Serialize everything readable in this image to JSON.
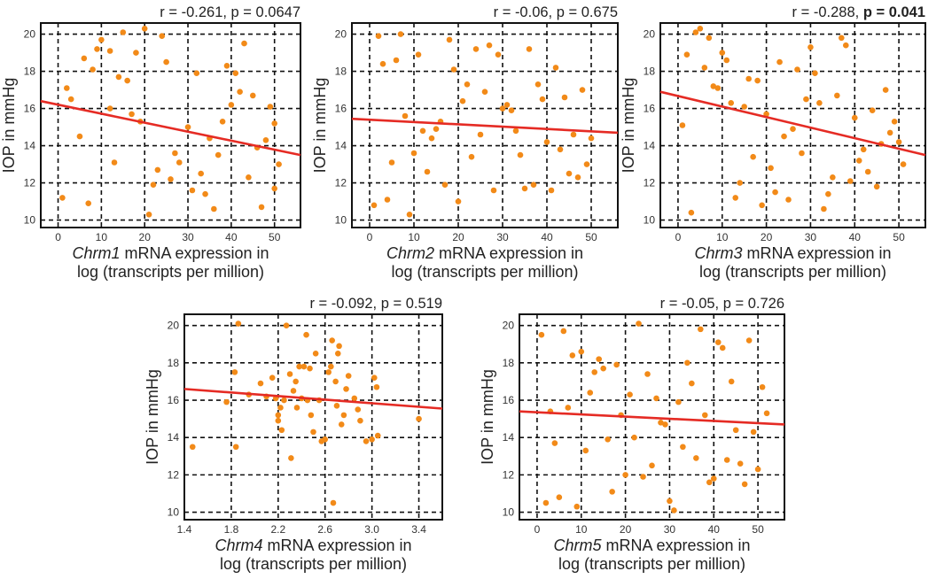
{
  "figure": {
    "colors": {
      "point": "#f28a18",
      "fit_line": "#e52b24",
      "grid": "#111111",
      "frame": "#111111"
    }
  },
  "chart_data": [
    {
      "type": "scatter",
      "panel": "chrm1",
      "stat_label": "r = -0.261, p = 0.0647",
      "stat_r": "r = -0.261, ",
      "stat_p": "p = 0.0647",
      "stat_p_bold": false,
      "ylabel": "IOP in mmHg",
      "xlabel_gene": "Chrm1",
      "xlabel_rest": " mRNA expression in",
      "xlabel_line2": "log (transcripts per million)",
      "xlim": [
        -4,
        56
      ],
      "ylim": [
        9.6,
        20.6
      ],
      "xticks": [
        0,
        10,
        20,
        30,
        40,
        50
      ],
      "xtick_labels": [
        "0",
        "10",
        "20",
        "30",
        "40",
        "50"
      ],
      "yticks": [
        10,
        12,
        14,
        16,
        18,
        20
      ],
      "ytick_labels": [
        "10",
        "12",
        "14",
        "16",
        "18",
        "20"
      ],
      "fit": {
        "x": [
          -4,
          56
        ],
        "y": [
          16.4,
          13.5
        ]
      },
      "points": [
        [
          1,
          11.2
        ],
        [
          2,
          17.1
        ],
        [
          3,
          16.5
        ],
        [
          5,
          14.5
        ],
        [
          6,
          18.7
        ],
        [
          7,
          10.9
        ],
        [
          8,
          18.1
        ],
        [
          9,
          19.2
        ],
        [
          10,
          19.7
        ],
        [
          12,
          16.0
        ],
        [
          12,
          19.1
        ],
        [
          13,
          13.1
        ],
        [
          14,
          17.7
        ],
        [
          15,
          20.1
        ],
        [
          16,
          17.5
        ],
        [
          17,
          15.7
        ],
        [
          18,
          19.0
        ],
        [
          19,
          15.3
        ],
        [
          20,
          20.3
        ],
        [
          21,
          10.3
        ],
        [
          22,
          11.9
        ],
        [
          23,
          12.7
        ],
        [
          24,
          19.9
        ],
        [
          25,
          18.5
        ],
        [
          26,
          12.2
        ],
        [
          27,
          13.6
        ],
        [
          28,
          13.1
        ],
        [
          30,
          15.0
        ],
        [
          31,
          11.6
        ],
        [
          32,
          17.9
        ],
        [
          33,
          12.5
        ],
        [
          34,
          11.4
        ],
        [
          35,
          14.4
        ],
        [
          36,
          10.6
        ],
        [
          37,
          13.5
        ],
        [
          38,
          15.3
        ],
        [
          39,
          18.3
        ],
        [
          40,
          16.2
        ],
        [
          41,
          17.9
        ],
        [
          42,
          16.9
        ],
        [
          43,
          19.5
        ],
        [
          44,
          12.3
        ],
        [
          45,
          16.7
        ],
        [
          46,
          13.9
        ],
        [
          47,
          10.7
        ],
        [
          48,
          14.3
        ],
        [
          49,
          16.1
        ],
        [
          50,
          11.7
        ],
        [
          51,
          13.0
        ],
        [
          50,
          15.2
        ]
      ]
    },
    {
      "type": "scatter",
      "panel": "chrm2",
      "stat_label": "r = -0.06, p = 0.675",
      "stat_r": "r = -0.06, ",
      "stat_p": "p = 0.675",
      "stat_p_bold": false,
      "ylabel": "IOP in mmHg",
      "xlabel_gene": "Chrm2",
      "xlabel_rest": " mRNA expression in",
      "xlabel_line2": "log (transcripts per million)",
      "xlim": [
        -4,
        56
      ],
      "ylim": [
        9.6,
        20.6
      ],
      "xticks": [
        0,
        10,
        20,
        30,
        40,
        50
      ],
      "xtick_labels": [
        "0",
        "10",
        "20",
        "30",
        "40",
        "50"
      ],
      "yticks": [
        10,
        12,
        14,
        16,
        18,
        20
      ],
      "ytick_labels": [
        "10",
        "12",
        "14",
        "16",
        "18",
        "20"
      ],
      "fit": {
        "x": [
          -4,
          56
        ],
        "y": [
          15.45,
          14.7
        ]
      },
      "points": [
        [
          1,
          10.8
        ],
        [
          2,
          19.9
        ],
        [
          3,
          18.4
        ],
        [
          4,
          11.1
        ],
        [
          5,
          13.1
        ],
        [
          6,
          18.6
        ],
        [
          7,
          20.0
        ],
        [
          8,
          15.6
        ],
        [
          9,
          10.3
        ],
        [
          10,
          13.6
        ],
        [
          11,
          18.9
        ],
        [
          12,
          14.8
        ],
        [
          13,
          12.6
        ],
        [
          14,
          14.4
        ],
        [
          15,
          14.9
        ],
        [
          16,
          15.3
        ],
        [
          17,
          11.9
        ],
        [
          18,
          19.7
        ],
        [
          19,
          18.1
        ],
        [
          20,
          11.0
        ],
        [
          21,
          16.4
        ],
        [
          22,
          17.3
        ],
        [
          23,
          13.4
        ],
        [
          24,
          19.2
        ],
        [
          25,
          14.6
        ],
        [
          26,
          16.9
        ],
        [
          27,
          19.4
        ],
        [
          28,
          11.6
        ],
        [
          29,
          18.9
        ],
        [
          30,
          16.0
        ],
        [
          31,
          16.2
        ],
        [
          32,
          15.9
        ],
        [
          33,
          14.8
        ],
        [
          34,
          13.5
        ],
        [
          35,
          11.7
        ],
        [
          36,
          19.2
        ],
        [
          37,
          11.9
        ],
        [
          38,
          17.3
        ],
        [
          39,
          16.5
        ],
        [
          40,
          14.2
        ],
        [
          41,
          11.6
        ],
        [
          42,
          18.2
        ],
        [
          43,
          13.8
        ],
        [
          44,
          16.6
        ],
        [
          45,
          12.5
        ],
        [
          46,
          14.6
        ],
        [
          47,
          12.3
        ],
        [
          48,
          17.0
        ],
        [
          49,
          13.0
        ],
        [
          50,
          14.4
        ]
      ]
    },
    {
      "type": "scatter",
      "panel": "chrm3",
      "stat_label": "r = -0.288, p = 0.041",
      "stat_r": "r = -0.288, ",
      "stat_p": "p = 0.041",
      "stat_p_bold": true,
      "ylabel": "IOP in mmHg",
      "xlabel_gene": "Chrm3",
      "xlabel_rest": " mRNA expression in",
      "xlabel_line2": "log (transcripts per million)",
      "xlim": [
        -4,
        56
      ],
      "ylim": [
        9.6,
        20.6
      ],
      "xticks": [
        0,
        10,
        20,
        30,
        40,
        50
      ],
      "xtick_labels": [
        "0",
        "10",
        "20",
        "30",
        "40",
        "50"
      ],
      "yticks": [
        10,
        12,
        14,
        16,
        18,
        20
      ],
      "ytick_labels": [
        "10",
        "12",
        "14",
        "16",
        "18",
        "20"
      ],
      "fit": {
        "x": [
          -4,
          56
        ],
        "y": [
          16.9,
          13.5
        ]
      },
      "points": [
        [
          1,
          15.1
        ],
        [
          2,
          18.9
        ],
        [
          3,
          10.4
        ],
        [
          4,
          20.1
        ],
        [
          5,
          20.3
        ],
        [
          6,
          18.2
        ],
        [
          7,
          19.8
        ],
        [
          8,
          17.2
        ],
        [
          9,
          17.1
        ],
        [
          10,
          19.0
        ],
        [
          11,
          18.6
        ],
        [
          12,
          16.3
        ],
        [
          13,
          11.2
        ],
        [
          14,
          12.0
        ],
        [
          15,
          16.1
        ],
        [
          16,
          17.6
        ],
        [
          17,
          13.4
        ],
        [
          18,
          17.5
        ],
        [
          19,
          10.8
        ],
        [
          20,
          15.7
        ],
        [
          21,
          12.8
        ],
        [
          22,
          11.5
        ],
        [
          23,
          18.5
        ],
        [
          24,
          14.5
        ],
        [
          25,
          11.1
        ],
        [
          26,
          14.9
        ],
        [
          27,
          18.1
        ],
        [
          28,
          13.6
        ],
        [
          29,
          16.5
        ],
        [
          30,
          19.3
        ],
        [
          31,
          17.9
        ],
        [
          32,
          16.3
        ],
        [
          33,
          10.6
        ],
        [
          34,
          11.4
        ],
        [
          35,
          12.3
        ],
        [
          36,
          16.7
        ],
        [
          37,
          19.8
        ],
        [
          38,
          19.4
        ],
        [
          39,
          12.1
        ],
        [
          40,
          15.5
        ],
        [
          41,
          13.2
        ],
        [
          42,
          13.8
        ],
        [
          43,
          12.6
        ],
        [
          44,
          15.9
        ],
        [
          45,
          11.8
        ],
        [
          46,
          14.1
        ],
        [
          47,
          17.0
        ],
        [
          48,
          14.7
        ],
        [
          49,
          15.3
        ],
        [
          50,
          14.2
        ],
        [
          51,
          13.0
        ]
      ]
    },
    {
      "type": "scatter",
      "panel": "chrm4",
      "stat_label": "r = -0.092, p = 0.519",
      "stat_r": "r = -0.092, ",
      "stat_p": "p = 0.519",
      "stat_p_bold": false,
      "ylabel": "IOP in mmHg",
      "xlabel_gene": "Chrm4",
      "xlabel_rest": " mRNA expression in",
      "xlabel_line2": "log (transcripts per million)",
      "xlim": [
        1.4,
        3.6
      ],
      "ylim": [
        9.6,
        20.6
      ],
      "xticks": [
        1.4,
        1.8,
        2.2,
        2.6,
        3.0,
        3.4
      ],
      "xtick_labels": [
        "1.4",
        "1.8",
        "2.2",
        "2.6",
        "3.0",
        "3.4"
      ],
      "yticks": [
        10,
        12,
        14,
        16,
        18,
        20
      ],
      "ytick_labels": [
        "10",
        "12",
        "14",
        "16",
        "18",
        "20"
      ],
      "fit": {
        "x": [
          1.4,
          3.6
        ],
        "y": [
          16.6,
          15.55
        ]
      },
      "points": [
        [
          1.47,
          13.5
        ],
        [
          1.76,
          15.9
        ],
        [
          1.83,
          17.5
        ],
        [
          1.84,
          13.5
        ],
        [
          1.86,
          20.1
        ],
        [
          1.95,
          16.3
        ],
        [
          2.05,
          16.9
        ],
        [
          2.1,
          16.2
        ],
        [
          2.15,
          17.2
        ],
        [
          2.18,
          16.1
        ],
        [
          2.2,
          15.2
        ],
        [
          2.2,
          14.9
        ],
        [
          2.22,
          15.6
        ],
        [
          2.23,
          14.4
        ],
        [
          2.25,
          16.0
        ],
        [
          2.27,
          20.0
        ],
        [
          2.3,
          17.4
        ],
        [
          2.31,
          12.9
        ],
        [
          2.33,
          16.5
        ],
        [
          2.35,
          17.0
        ],
        [
          2.36,
          15.6
        ],
        [
          2.38,
          17.8
        ],
        [
          2.4,
          16.1
        ],
        [
          2.42,
          17.8
        ],
        [
          2.44,
          19.5
        ],
        [
          2.45,
          16.0
        ],
        [
          2.47,
          17.7
        ],
        [
          2.48,
          15.2
        ],
        [
          2.5,
          14.3
        ],
        [
          2.52,
          18.5
        ],
        [
          2.55,
          16.0
        ],
        [
          2.57,
          13.8
        ],
        [
          2.6,
          13.9
        ],
        [
          2.63,
          17.5
        ],
        [
          2.65,
          17.8
        ],
        [
          2.66,
          19.2
        ],
        [
          2.67,
          10.5
        ],
        [
          2.69,
          17.0
        ],
        [
          2.7,
          15.7
        ],
        [
          2.71,
          18.5
        ],
        [
          2.72,
          18.9
        ],
        [
          2.74,
          14.7
        ],
        [
          2.76,
          15.2
        ],
        [
          2.78,
          16.6
        ],
        [
          2.8,
          17.3
        ],
        [
          2.85,
          16.1
        ],
        [
          2.88,
          15.5
        ],
        [
          2.9,
          14.9
        ],
        [
          2.95,
          13.8
        ],
        [
          3.0,
          13.9
        ],
        [
          3.02,
          17.2
        ],
        [
          3.04,
          16.7
        ],
        [
          3.05,
          14.1
        ],
        [
          3.4,
          15.0
        ]
      ]
    },
    {
      "type": "scatter",
      "panel": "chrm5",
      "stat_label": "r = -0.05, p = 0.726",
      "stat_r": "r = -0.05, ",
      "stat_p": "p = 0.726",
      "stat_p_bold": false,
      "ylabel": "IOP in mmHg",
      "xlabel_gene": "Chrm5",
      "xlabel_rest": " mRNA expression in",
      "xlabel_line2": "log (transcripts per million)",
      "xlim": [
        -4,
        56
      ],
      "ylim": [
        9.6,
        20.6
      ],
      "xticks": [
        0,
        10,
        20,
        30,
        40,
        50
      ],
      "xtick_labels": [
        "0",
        "10",
        "20",
        "30",
        "40",
        "50"
      ],
      "yticks": [
        10,
        12,
        14,
        16,
        18,
        20
      ],
      "ytick_labels": [
        "10",
        "12",
        "14",
        "16",
        "18",
        "20"
      ],
      "fit": {
        "x": [
          -4,
          56
        ],
        "y": [
          15.4,
          14.7
        ]
      },
      "points": [
        [
          1,
          19.5
        ],
        [
          2,
          10.5
        ],
        [
          3,
          15.4
        ],
        [
          4,
          13.7
        ],
        [
          5,
          10.8
        ],
        [
          6,
          19.7
        ],
        [
          7,
          15.6
        ],
        [
          8,
          18.4
        ],
        [
          9,
          10.3
        ],
        [
          10,
          18.6
        ],
        [
          11,
          13.3
        ],
        [
          12,
          16.4
        ],
        [
          13,
          17.5
        ],
        [
          14,
          18.2
        ],
        [
          15,
          17.7
        ],
        [
          16,
          13.9
        ],
        [
          17,
          11.1
        ],
        [
          18,
          17.9
        ],
        [
          19,
          15.2
        ],
        [
          20,
          12.0
        ],
        [
          21,
          16.3
        ],
        [
          22,
          14.0
        ],
        [
          23,
          20.1
        ],
        [
          24,
          11.9
        ],
        [
          25,
          17.4
        ],
        [
          26,
          12.5
        ],
        [
          27,
          16.1
        ],
        [
          28,
          14.8
        ],
        [
          29,
          14.7
        ],
        [
          30,
          10.6
        ],
        [
          31,
          10.1
        ],
        [
          32,
          15.9
        ],
        [
          33,
          13.5
        ],
        [
          34,
          18.0
        ],
        [
          35,
          16.9
        ],
        [
          36,
          12.9
        ],
        [
          37,
          19.8
        ],
        [
          38,
          15.2
        ],
        [
          39,
          11.6
        ],
        [
          40,
          11.8
        ],
        [
          41,
          19.1
        ],
        [
          42,
          18.8
        ],
        [
          43,
          12.8
        ],
        [
          44,
          17.0
        ],
        [
          45,
          14.4
        ],
        [
          46,
          12.6
        ],
        [
          47,
          11.5
        ],
        [
          48,
          19.2
        ],
        [
          49,
          14.3
        ],
        [
          50,
          12.3
        ],
        [
          51,
          16.7
        ],
        [
          52,
          15.3
        ]
      ]
    }
  ]
}
